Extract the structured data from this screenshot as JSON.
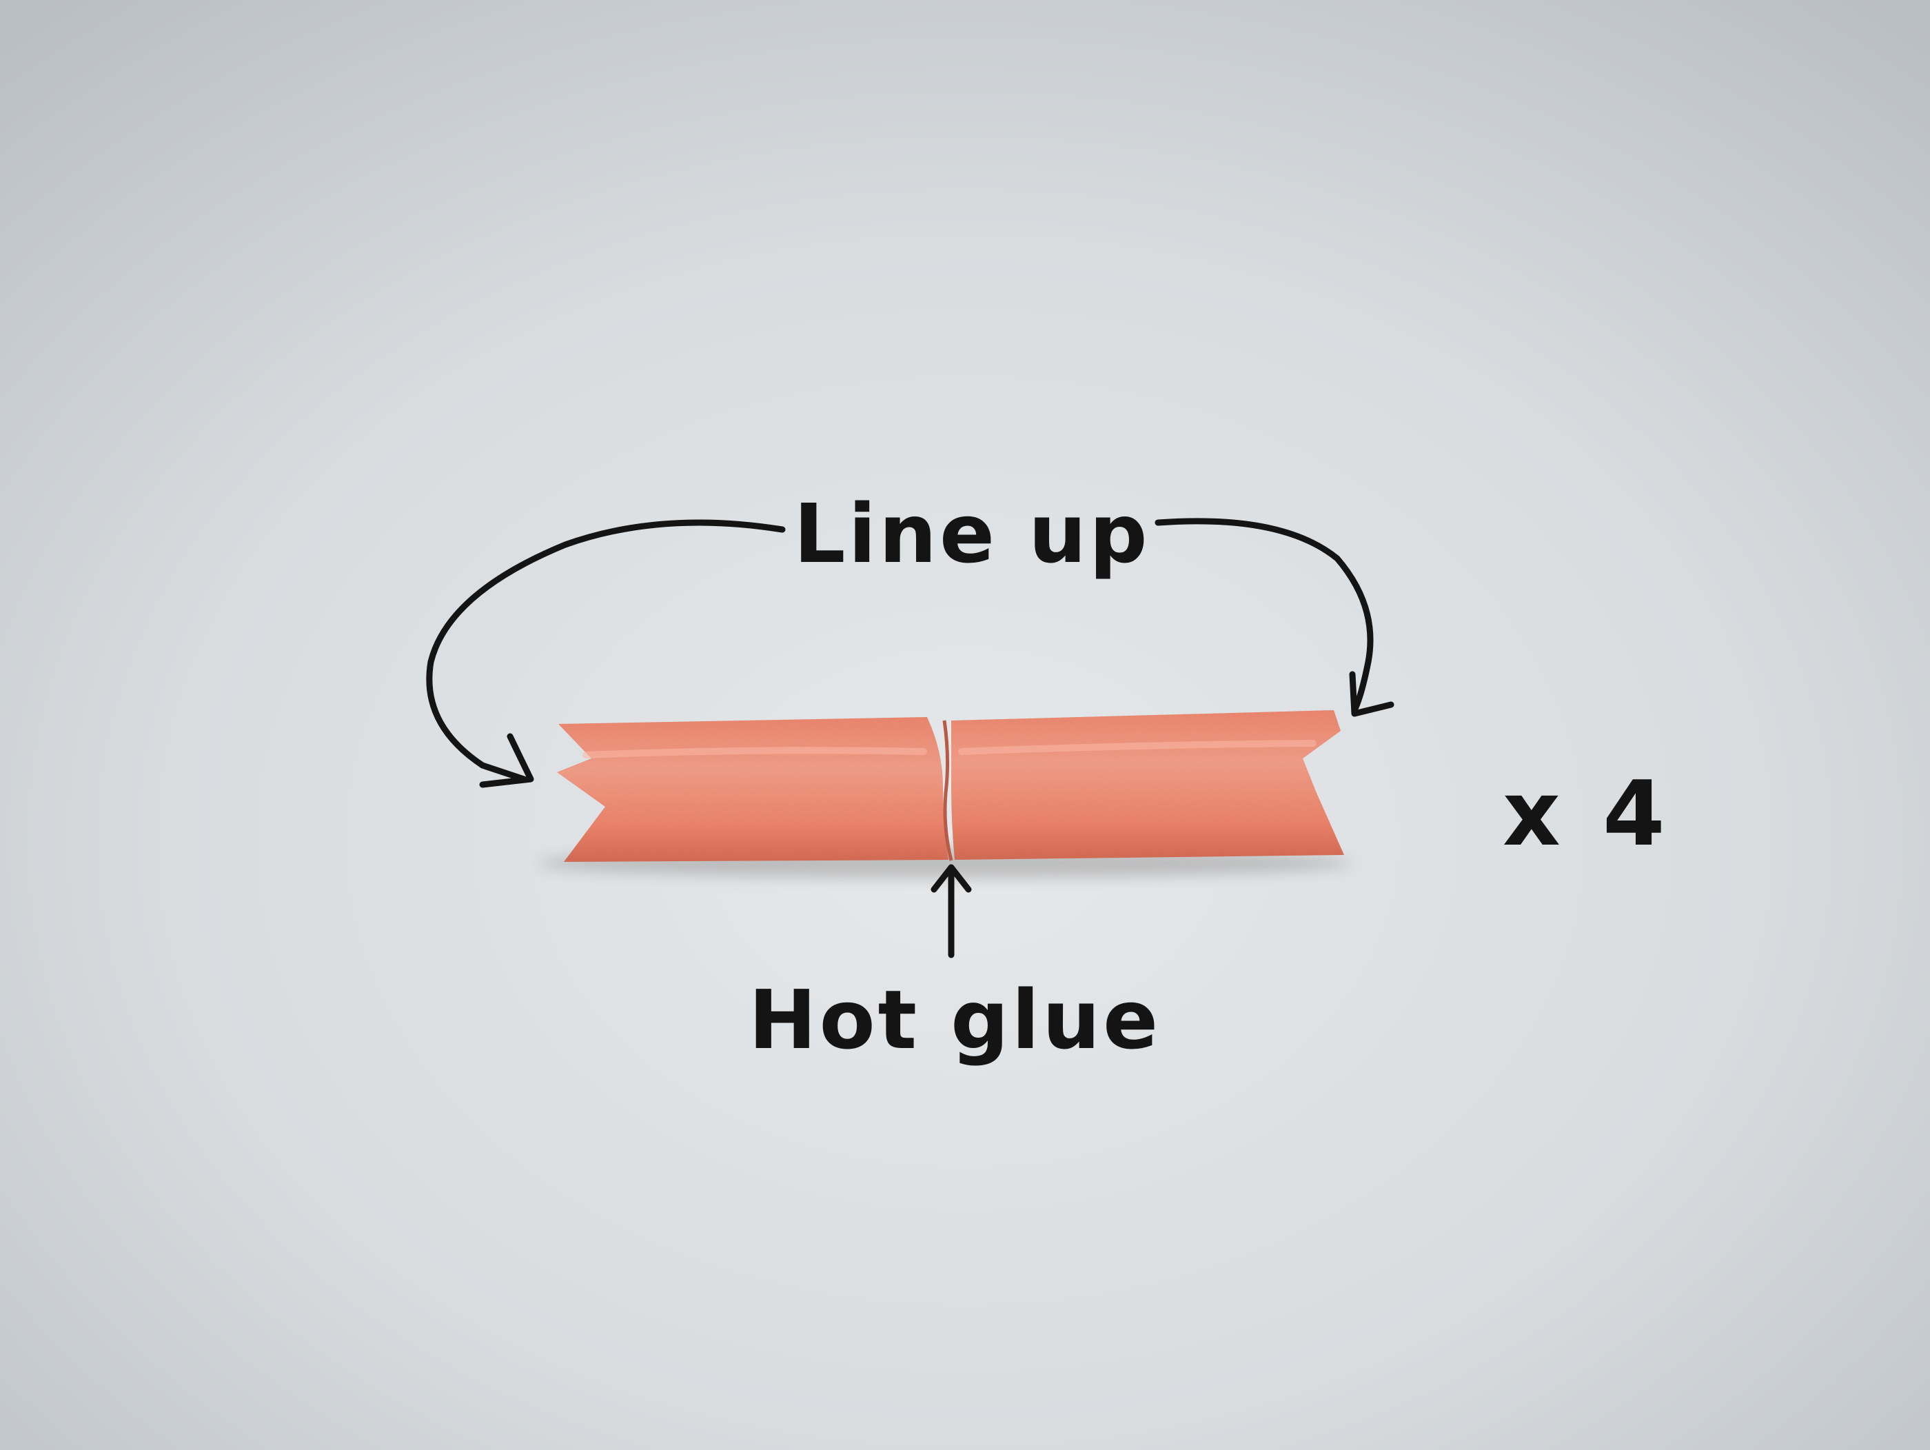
{
  "annotations": {
    "line_up": "Line up",
    "hot_glue": "Hot glue",
    "multiplier": "x 4"
  },
  "colors": {
    "paper_center": "#e6e8ea",
    "paper_edge": "#b9bec3",
    "foam": "#f2876e",
    "foam_light": "#f7a28c",
    "foam_shadow": "#d96e57",
    "ink": "#141414"
  },
  "objects": {
    "foam_pieces_shown": 2,
    "joint": "butt joint between the two foam pieces"
  }
}
